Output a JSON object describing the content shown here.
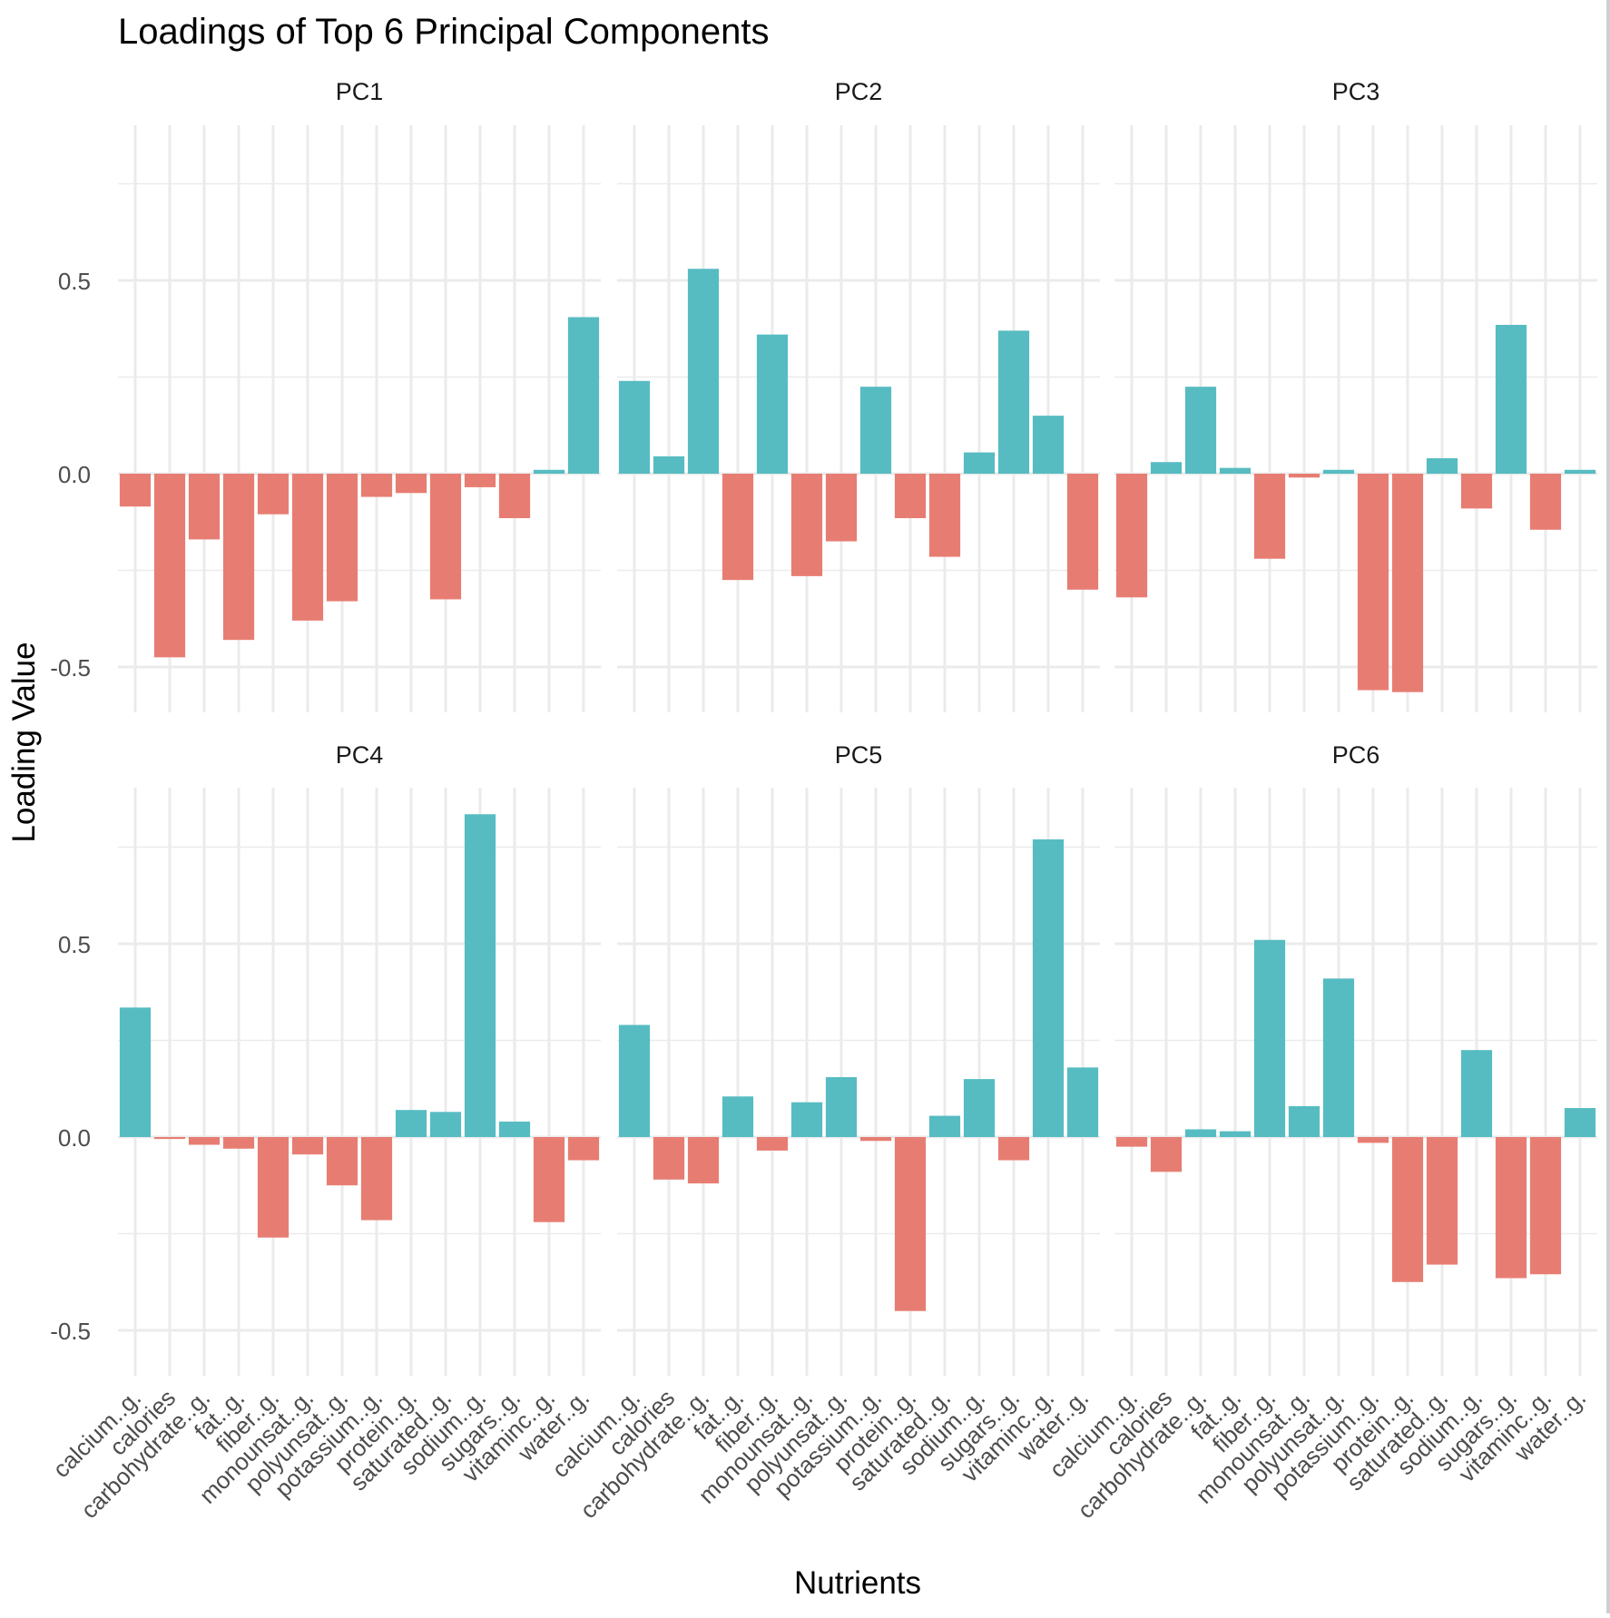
{
  "chart_data": {
    "type": "bar",
    "title": "Loadings of Top 6 Principal Components",
    "xlabel": "Nutrients",
    "ylabel": "Loading Value",
    "categories": [
      "calcium..g.",
      "calories",
      "carbohydrate..g.",
      "fat..g.",
      "fiber..g.",
      "monounsat..g.",
      "polyunsat..g.",
      "potassium..g.",
      "protein..g.",
      "saturated..g.",
      "sodium..g.",
      "sugars..g.",
      "vitaminc..g.",
      "water..g."
    ],
    "y_ticks": [
      {
        "value": 0.5,
        "label": "0.5"
      },
      {
        "value": 0.0,
        "label": "0.0"
      },
      {
        "value": -0.5,
        "label": "-0.5"
      }
    ],
    "ylim": [
      -0.62,
      0.9
    ],
    "colors": {
      "positive": "#56BCC2",
      "negative": "#E77D72",
      "grid": "#EBEBEB"
    },
    "grid": true,
    "legend": "none",
    "facets": [
      {
        "name": "PC1",
        "values": [
          -0.085,
          -0.475,
          -0.17,
          -0.43,
          -0.105,
          -0.38,
          -0.33,
          -0.06,
          -0.05,
          -0.325,
          -0.035,
          -0.115,
          0.01,
          0.405
        ]
      },
      {
        "name": "PC2",
        "values": [
          0.24,
          0.045,
          0.53,
          -0.275,
          0.36,
          -0.265,
          -0.175,
          0.225,
          -0.115,
          -0.215,
          0.055,
          0.37,
          0.15,
          -0.3
        ]
      },
      {
        "name": "PC3",
        "values": [
          -0.32,
          0.03,
          0.225,
          0.015,
          -0.22,
          -0.01,
          0.01,
          -0.56,
          -0.565,
          0.04,
          -0.09,
          0.385,
          -0.145,
          0.01
        ]
      },
      {
        "name": "PC4",
        "values": [
          0.335,
          -0.005,
          -0.02,
          -0.03,
          -0.26,
          -0.045,
          -0.125,
          -0.215,
          0.07,
          0.065,
          0.835,
          0.04,
          -0.22,
          -0.06
        ]
      },
      {
        "name": "PC5",
        "values": [
          0.29,
          -0.11,
          -0.12,
          0.105,
          -0.035,
          0.09,
          0.155,
          -0.01,
          -0.45,
          0.055,
          0.15,
          -0.06,
          0.77,
          0.18
        ]
      },
      {
        "name": "PC6",
        "values": [
          -0.025,
          -0.09,
          0.02,
          0.015,
          0.51,
          0.08,
          0.41,
          -0.015,
          -0.375,
          -0.33,
          0.225,
          -0.365,
          -0.355,
          0.075
        ]
      }
    ]
  }
}
